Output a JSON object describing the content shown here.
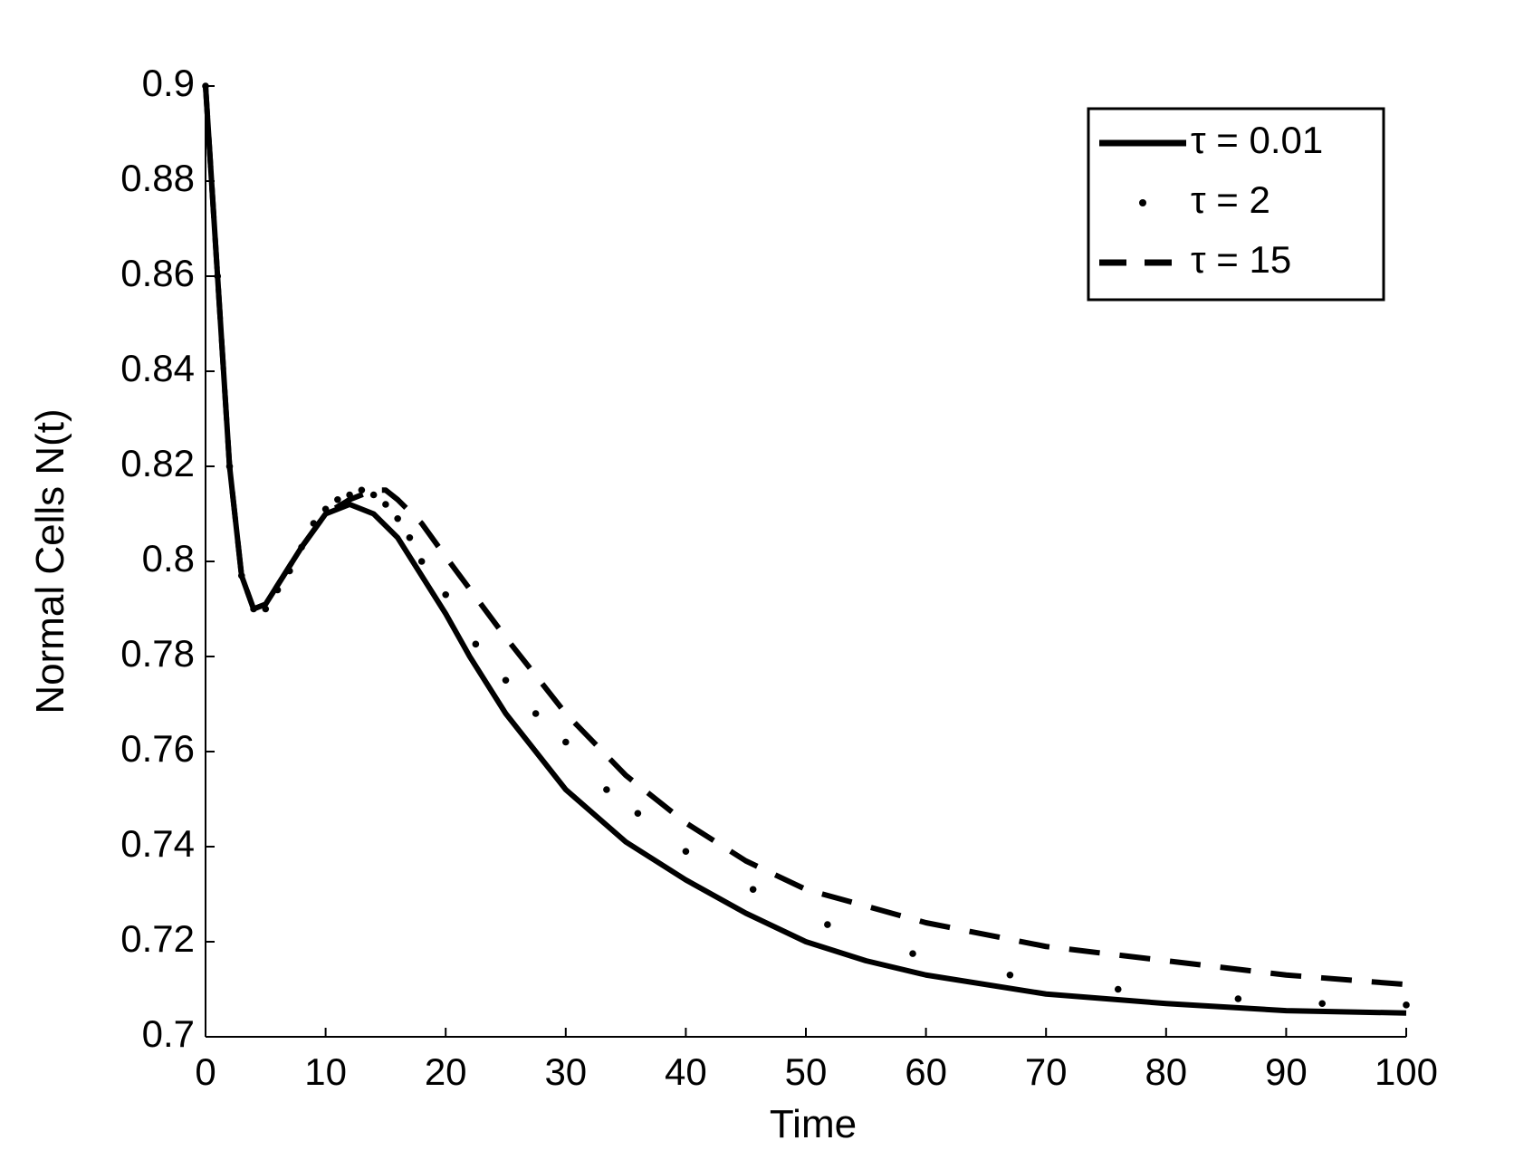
{
  "chart_data": {
    "type": "line",
    "xlabel": "Time",
    "ylabel": "Normal Cells N(t)",
    "xlim": [
      0,
      100
    ],
    "ylim": [
      0.7,
      0.9
    ],
    "xticks": [
      0,
      10,
      20,
      30,
      40,
      50,
      60,
      70,
      80,
      90,
      100
    ],
    "yticks": [
      0.7,
      0.72,
      0.74,
      0.76,
      0.78,
      0.8,
      0.82,
      0.84,
      0.86,
      0.88,
      0.9
    ],
    "legend": "upper right",
    "series": [
      {
        "name": "τ = 0.01",
        "color": "#000000",
        "style": "solid",
        "x": [
          0,
          1,
          2,
          3,
          4,
          5,
          6,
          8,
          10,
          12,
          14,
          16,
          18,
          20,
          22,
          25,
          30,
          35,
          40,
          45,
          50,
          55,
          60,
          70,
          80,
          90,
          100
        ],
        "values": [
          0.9,
          0.86,
          0.82,
          0.797,
          0.79,
          0.791,
          0.795,
          0.803,
          0.81,
          0.812,
          0.81,
          0.805,
          0.797,
          0.789,
          0.78,
          0.768,
          0.752,
          0.741,
          0.733,
          0.726,
          0.72,
          0.716,
          0.713,
          0.709,
          0.707,
          0.7055,
          0.705
        ]
      },
      {
        "name": "τ = 2",
        "color": "#000000",
        "style": "dotted",
        "x": [
          0,
          1,
          2,
          3,
          4,
          5,
          6,
          7,
          8,
          9,
          10,
          11,
          12,
          13,
          14,
          15,
          16,
          17,
          18,
          20,
          22.5,
          25,
          27.5,
          30,
          33.4,
          36,
          40,
          45.6,
          51.8,
          58.9,
          67,
          76,
          86,
          93,
          100
        ],
        "values": [
          0.9,
          0.86,
          0.82,
          0.797,
          0.79,
          0.79,
          0.794,
          0.798,
          0.803,
          0.808,
          0.811,
          0.813,
          0.814,
          0.815,
          0.814,
          0.812,
          0.809,
          0.805,
          0.8,
          0.793,
          0.7826,
          0.775,
          0.768,
          0.762,
          0.752,
          0.747,
          0.739,
          0.731,
          0.7236,
          0.7175,
          0.713,
          0.71,
          0.708,
          0.707,
          0.7067
        ]
      },
      {
        "name": "τ = 15",
        "color": "#000000",
        "style": "dashed",
        "x": [
          0,
          1,
          2,
          3,
          4,
          5,
          6,
          8,
          10,
          12,
          14,
          15,
          16,
          18,
          20,
          25,
          30,
          35,
          40,
          45,
          50,
          60,
          70,
          80,
          90,
          100
        ],
        "values": [
          0.9,
          0.86,
          0.82,
          0.797,
          0.79,
          0.791,
          0.795,
          0.803,
          0.81,
          0.813,
          0.815,
          0.815,
          0.813,
          0.808,
          0.801,
          0.784,
          0.768,
          0.755,
          0.745,
          0.737,
          0.731,
          0.724,
          0.719,
          0.716,
          0.713,
          0.711
        ]
      }
    ]
  }
}
